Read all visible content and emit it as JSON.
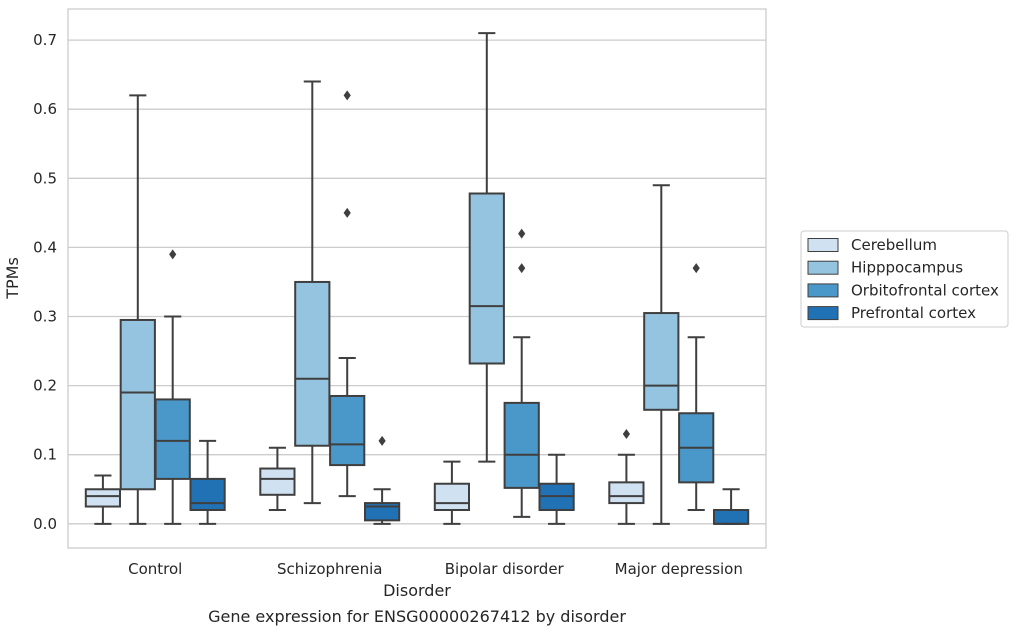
{
  "chart_data": {
    "type": "boxplot",
    "title": "",
    "caption": "Gene expression for ENSG00000267412 by disorder",
    "xlabel": "Disorder",
    "ylabel": "TPMs",
    "ylim": [
      -0.035,
      0.745
    ],
    "yticks": [
      "0.0",
      "0.1",
      "0.2",
      "0.3",
      "0.4",
      "0.5",
      "0.6",
      "0.7"
    ],
    "grid": "horizontal",
    "legend_position": "right",
    "categories": [
      "Control",
      "Schizophrenia",
      "Bipolar disorder",
      "Major depression"
    ],
    "series": [
      {
        "name": "Cerebellum",
        "color": "#d0e1f2",
        "boxes": [
          {
            "wlo": 0.0,
            "q1": 0.025,
            "med": 0.04,
            "q3": 0.05,
            "whi": 0.07,
            "outliers": []
          },
          {
            "wlo": 0.02,
            "q1": 0.042,
            "med": 0.065,
            "q3": 0.08,
            "whi": 0.11,
            "outliers": []
          },
          {
            "wlo": 0.0,
            "q1": 0.02,
            "med": 0.03,
            "q3": 0.058,
            "whi": 0.09,
            "outliers": []
          },
          {
            "wlo": 0.0,
            "q1": 0.03,
            "med": 0.04,
            "q3": 0.06,
            "whi": 0.1,
            "outliers": [
              0.13
            ]
          }
        ]
      },
      {
        "name": "Hipppocampus",
        "color": "#94c4df",
        "boxes": [
          {
            "wlo": 0.0,
            "q1": 0.05,
            "med": 0.19,
            "q3": 0.295,
            "whi": 0.62,
            "outliers": []
          },
          {
            "wlo": 0.03,
            "q1": 0.113,
            "med": 0.21,
            "q3": 0.35,
            "whi": 0.64,
            "outliers": []
          },
          {
            "wlo": 0.09,
            "q1": 0.232,
            "med": 0.315,
            "q3": 0.478,
            "whi": 0.71,
            "outliers": []
          },
          {
            "wlo": 0.0,
            "q1": 0.165,
            "med": 0.2,
            "q3": 0.305,
            "whi": 0.49,
            "outliers": []
          }
        ]
      },
      {
        "name": "Orbitofrontal cortex",
        "color": "#4a98c9",
        "boxes": [
          {
            "wlo": 0.0,
            "q1": 0.065,
            "med": 0.12,
            "q3": 0.18,
            "whi": 0.3,
            "outliers": [
              0.39
            ]
          },
          {
            "wlo": 0.04,
            "q1": 0.085,
            "med": 0.115,
            "q3": 0.185,
            "whi": 0.24,
            "outliers": [
              0.45,
              0.62
            ]
          },
          {
            "wlo": 0.01,
            "q1": 0.052,
            "med": 0.1,
            "q3": 0.175,
            "whi": 0.27,
            "outliers": [
              0.37,
              0.42
            ]
          },
          {
            "wlo": 0.02,
            "q1": 0.06,
            "med": 0.11,
            "q3": 0.16,
            "whi": 0.27,
            "outliers": [
              0.37
            ]
          }
        ]
      },
      {
        "name": "Prefrontal cortex",
        "color": "#2171b5",
        "boxes": [
          {
            "wlo": 0.0,
            "q1": 0.02,
            "med": 0.03,
            "q3": 0.065,
            "whi": 0.12,
            "outliers": []
          },
          {
            "wlo": 0.0,
            "q1": 0.005,
            "med": 0.025,
            "q3": 0.03,
            "whi": 0.05,
            "outliers": [
              0.12
            ]
          },
          {
            "wlo": 0.0,
            "q1": 0.02,
            "med": 0.04,
            "q3": 0.058,
            "whi": 0.1,
            "outliers": []
          },
          {
            "wlo": 0.0,
            "q1": 0.0,
            "med": 0.0,
            "q3": 0.02,
            "whi": 0.05,
            "outliers": []
          }
        ]
      }
    ]
  }
}
